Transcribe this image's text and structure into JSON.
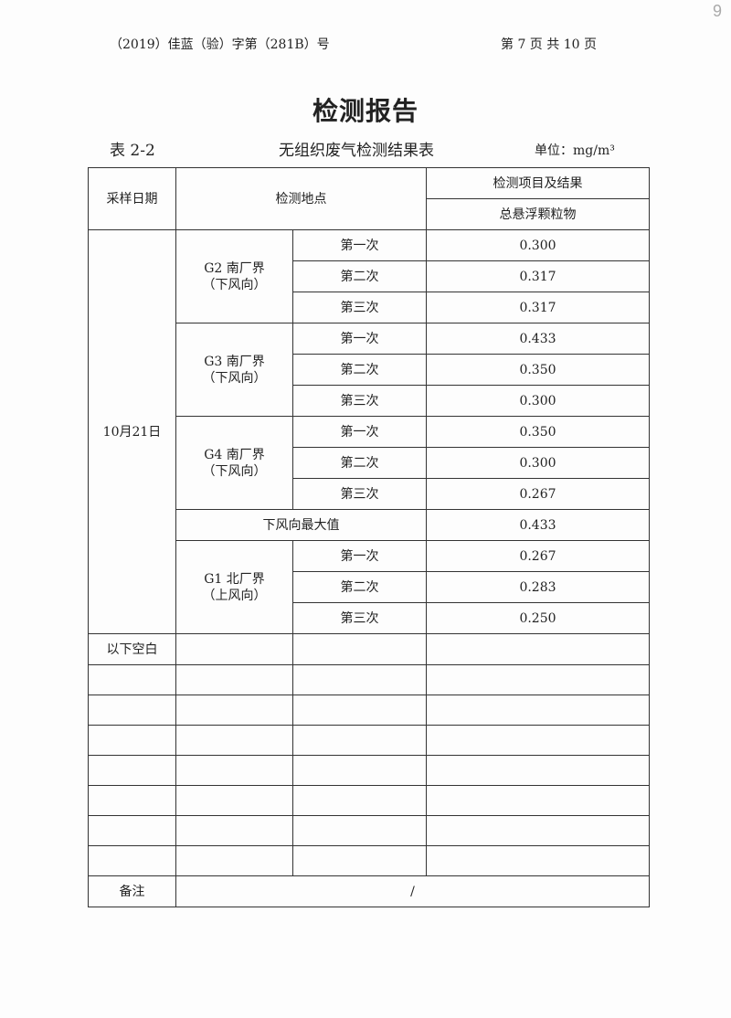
{
  "header": {
    "doc_number": "（2019）佳蓝（验）字第（281B）号",
    "page_info": "第 7 页 共 10 页",
    "handwritten_page": "9"
  },
  "title": "检测报告",
  "table_label": "表 2-2",
  "table_title": "无组织废气检测结果表",
  "unit": "单位：mg/m³",
  "columns": {
    "date": "采样日期",
    "location": "检测地点",
    "items": "检测项目及结果",
    "tsp": "总悬浮颗粒物"
  },
  "date": "10月21日",
  "groups": [
    {
      "site": "G2 南厂界",
      "dir": "（下风向）",
      "rows": [
        {
          "n": "第一次",
          "v": "0.300"
        },
        {
          "n": "第二次",
          "v": "0.317"
        },
        {
          "n": "第三次",
          "v": "0.317"
        }
      ]
    },
    {
      "site": "G3 南厂界",
      "dir": "（下风向）",
      "rows": [
        {
          "n": "第一次",
          "v": "0.433"
        },
        {
          "n": "第二次",
          "v": "0.350"
        },
        {
          "n": "第三次",
          "v": "0.300"
        }
      ]
    },
    {
      "site": "G4 南厂界",
      "dir": "（下风向）",
      "rows": [
        {
          "n": "第一次",
          "v": "0.350"
        },
        {
          "n": "第二次",
          "v": "0.300"
        },
        {
          "n": "第三次",
          "v": "0.267"
        }
      ]
    }
  ],
  "max": {
    "label": "下风向最大值",
    "value": "0.433"
  },
  "upwind": {
    "site": "G1 北厂界",
    "dir": "（上风向）",
    "rows": [
      {
        "n": "第一次",
        "v": "0.267"
      },
      {
        "n": "第二次",
        "v": "0.283"
      },
      {
        "n": "第三次",
        "v": "0.250"
      }
    ]
  },
  "blank_label": "以下空白",
  "remark": {
    "label": "备注",
    "value": "/"
  }
}
